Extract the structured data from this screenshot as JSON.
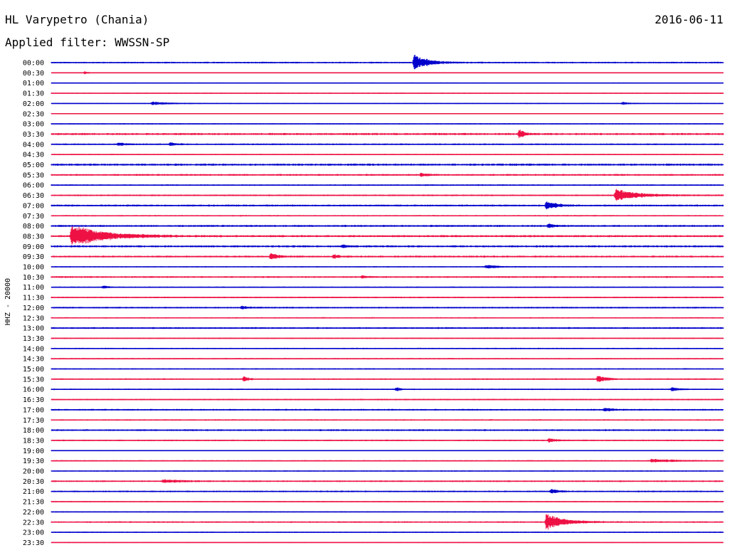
{
  "header": {
    "station": "HL Varypetro (Chania)",
    "filter": "Applied filter: WWSSN-SP",
    "date": "2016-06-11"
  },
  "chart_data": {
    "type": "line",
    "ylabel": "HHZ - 20000",
    "row_labels": [
      "00:00",
      "00:30",
      "01:00",
      "01:30",
      "02:00",
      "02:30",
      "03:00",
      "03:30",
      "04:00",
      "04:30",
      "05:00",
      "05:30",
      "06:00",
      "06:30",
      "07:00",
      "07:30",
      "08:00",
      "08:30",
      "09:00",
      "09:30",
      "10:00",
      "10:30",
      "11:00",
      "11:30",
      "12:00",
      "12:30",
      "13:00",
      "13:30",
      "14:00",
      "14:30",
      "15:00",
      "15:30",
      "16:00",
      "16:30",
      "17:00",
      "17:30",
      "18:00",
      "18:30",
      "19:00",
      "19:30",
      "20:00",
      "20:30",
      "21:00",
      "21:30",
      "22:00",
      "22:30",
      "23:00",
      "23:30"
    ],
    "colors": [
      "#0000cc",
      "#ee1144"
    ],
    "row_minutes": 30,
    "noise_level": [
      1.2,
      0.6,
      0.8,
      0.8,
      0.8,
      0.6,
      0.9,
      1.6,
      1.2,
      0.9,
      1.6,
      1.4,
      1.1,
      1.2,
      1.4,
      1.0,
      1.5,
      1.6,
      1.5,
      1.4,
      0.9,
      1.3,
      1.0,
      1.1,
      1.2,
      1.0,
      1.3,
      1.0,
      1.0,
      1.0,
      1.0,
      1.1,
      1.0,
      1.1,
      1.2,
      1.0,
      1.3,
      1.1,
      0.8,
      1.0,
      0.9,
      1.2,
      1.2,
      0.9,
      0.9,
      1.2,
      0.9,
      0.7
    ],
    "events": [
      {
        "row": 0,
        "minute": 16.2,
        "amp": 11,
        "dur": 1.3
      },
      {
        "row": 1,
        "minute": 1.5,
        "amp": 2,
        "dur": 0.3
      },
      {
        "row": 4,
        "minute": 4.5,
        "amp": 2.5,
        "dur": 1.5
      },
      {
        "row": 4,
        "minute": 25.5,
        "amp": 2,
        "dur": 0.7
      },
      {
        "row": 7,
        "minute": 20.9,
        "amp": 7,
        "dur": 0.4
      },
      {
        "row": 8,
        "minute": 3.0,
        "amp": 2,
        "dur": 0.6
      },
      {
        "row": 8,
        "minute": 5.3,
        "amp": 2,
        "dur": 0.6
      },
      {
        "row": 11,
        "minute": 16.5,
        "amp": 2,
        "dur": 0.6
      },
      {
        "row": 13,
        "minute": 25.2,
        "amp": 9,
        "dur": 2.0
      },
      {
        "row": 14,
        "minute": 22.1,
        "amp": 6,
        "dur": 0.9
      },
      {
        "row": 16,
        "minute": 22.2,
        "amp": 3,
        "dur": 0.5
      },
      {
        "row": 17,
        "minute": 0.9,
        "amp": 16,
        "dur": 3.0
      },
      {
        "row": 18,
        "minute": 13.0,
        "amp": 2,
        "dur": 0.5
      },
      {
        "row": 19,
        "minute": 9.8,
        "amp": 6,
        "dur": 0.6
      },
      {
        "row": 19,
        "minute": 12.6,
        "amp": 3,
        "dur": 0.5
      },
      {
        "row": 20,
        "minute": 19.4,
        "amp": 2.5,
        "dur": 1.2
      },
      {
        "row": 21,
        "minute": 13.9,
        "amp": 2,
        "dur": 0.5
      },
      {
        "row": 22,
        "minute": 2.3,
        "amp": 2,
        "dur": 0.5
      },
      {
        "row": 24,
        "minute": 8.5,
        "amp": 2,
        "dur": 0.8
      },
      {
        "row": 31,
        "minute": 8.6,
        "amp": 4,
        "dur": 0.4
      },
      {
        "row": 31,
        "minute": 24.4,
        "amp": 5,
        "dur": 0.8
      },
      {
        "row": 32,
        "minute": 15.4,
        "amp": 3,
        "dur": 0.4
      },
      {
        "row": 32,
        "minute": 27.7,
        "amp": 2.5,
        "dur": 0.7
      },
      {
        "row": 34,
        "minute": 24.7,
        "amp": 2.5,
        "dur": 0.7
      },
      {
        "row": 37,
        "minute": 22.2,
        "amp": 3,
        "dur": 0.8
      },
      {
        "row": 39,
        "minute": 26.8,
        "amp": 2.5,
        "dur": 2.2
      },
      {
        "row": 41,
        "minute": 5.0,
        "amp": 2,
        "dur": 2.0
      },
      {
        "row": 42,
        "minute": 22.3,
        "amp": 3,
        "dur": 0.7
      },
      {
        "row": 45,
        "minute": 22.1,
        "amp": 12,
        "dur": 1.6
      }
    ]
  }
}
